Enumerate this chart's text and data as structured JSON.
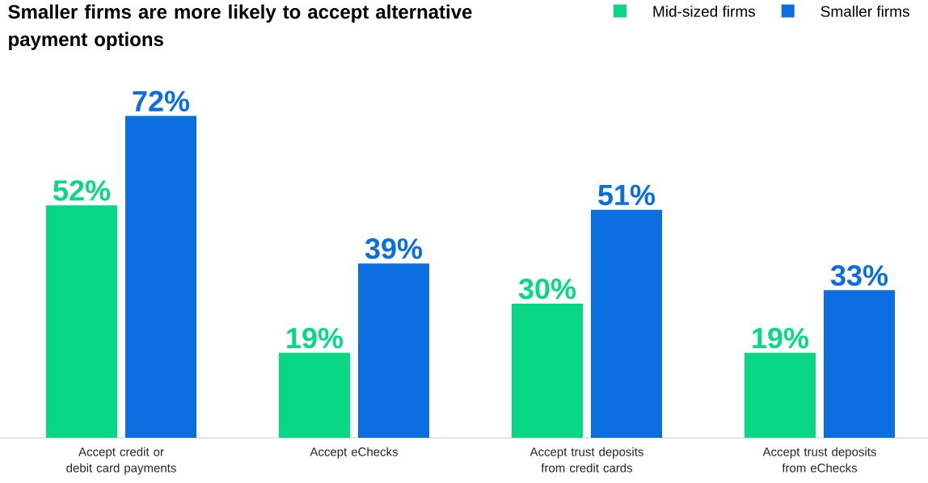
{
  "chart_data": {
    "type": "bar",
    "title": "Smaller firms are more likely to accept alternative payment options",
    "categories": [
      "Accept credit or debit card payments",
      "Accept eChecks",
      "Accept trust deposits from credit cards",
      "Accept trust deposits from eChecks"
    ],
    "series": [
      {
        "name": "Mid-sized firms",
        "color": "#08d886",
        "values": [
          52,
          19,
          30,
          19
        ],
        "value_labels": [
          "52%",
          "19%",
          "30%",
          "19%"
        ]
      },
      {
        "name": "Smaller firms",
        "color": "#0a6ee0",
        "values": [
          72,
          39,
          51,
          33
        ],
        "value_labels": [
          "72%",
          "39%",
          "51%",
          "33%"
        ]
      }
    ],
    "legend": "top right"
  }
}
